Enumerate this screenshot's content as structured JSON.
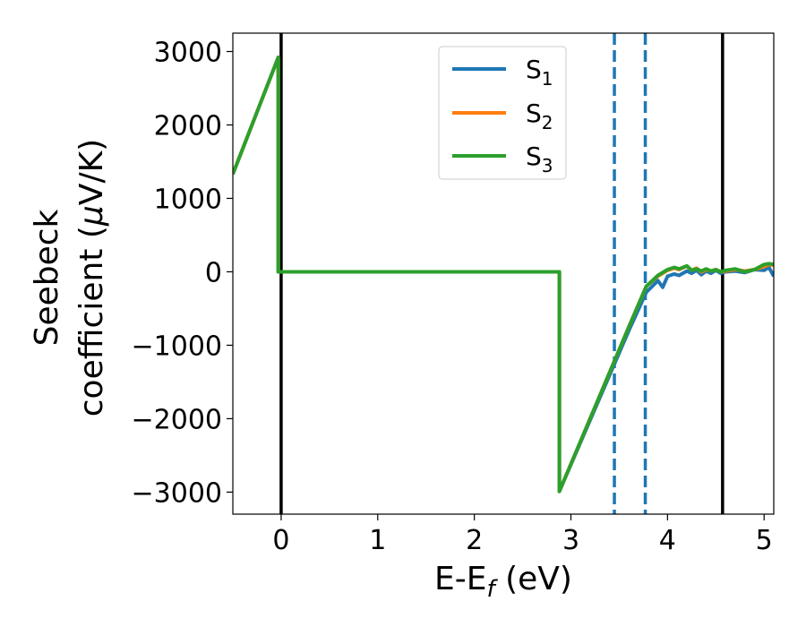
{
  "chart_data": {
    "type": "line",
    "xlabel": {
      "main": "E-E",
      "sub": "f",
      "unit": " (eV)"
    },
    "ylabel": {
      "line1": "Seebeck",
      "line2": "coefficient  (",
      "mu": "μ",
      "unit": "V/K)"
    },
    "xlim": [
      -0.5,
      5.1
    ],
    "ylim": [
      -3300,
      3250
    ],
    "x_ticks": [
      0,
      1,
      2,
      3,
      4,
      5
    ],
    "y_ticks": [
      -3000,
      -2000,
      -1000,
      0,
      1000,
      2000,
      3000
    ],
    "x_tick_labels": [
      "0",
      "1",
      "2",
      "3",
      "4",
      "5"
    ],
    "y_tick_labels": [
      "−3000",
      "−2000",
      "−1000",
      "0",
      "1000",
      "2000",
      "3000"
    ],
    "grid": false,
    "legend_position": "top-center",
    "vertical_lines": [
      {
        "x": 0.0,
        "style": "solid",
        "color": "#000000"
      },
      {
        "x": 4.57,
        "style": "solid",
        "color": "#000000"
      },
      {
        "x": 3.45,
        "style": "dashed",
        "color": "#1f77b4"
      },
      {
        "x": 3.77,
        "style": "dashed",
        "color": "#1f77b4"
      }
    ],
    "series": [
      {
        "name": {
          "base": "S",
          "sub": "1"
        },
        "color": "#1f77b4",
        "points": [
          [
            -0.5,
            1330
          ],
          [
            -0.03,
            2920
          ],
          [
            -0.03,
            0
          ],
          [
            2.88,
            0
          ],
          [
            2.88,
            -2990
          ],
          [
            3.6,
            -800
          ],
          [
            3.78,
            -280
          ],
          [
            3.9,
            -120
          ],
          [
            3.95,
            -210
          ],
          [
            4.0,
            -60
          ],
          [
            4.07,
            -30
          ],
          [
            4.12,
            -50
          ],
          [
            4.2,
            10
          ],
          [
            4.25,
            -20
          ],
          [
            4.3,
            20
          ],
          [
            4.35,
            -40
          ],
          [
            4.4,
            10
          ],
          [
            4.45,
            -20
          ],
          [
            4.5,
            20
          ],
          [
            4.55,
            -20
          ],
          [
            4.6,
            0
          ],
          [
            4.7,
            10
          ],
          [
            4.8,
            -10
          ],
          [
            4.9,
            30
          ],
          [
            5.0,
            20
          ],
          [
            5.05,
            60
          ],
          [
            5.1,
            -60
          ]
        ]
      },
      {
        "name": {
          "base": "S",
          "sub": "2"
        },
        "color": "#ff7f0e",
        "points": [
          [
            -0.5,
            1330
          ],
          [
            -0.03,
            2920
          ],
          [
            -0.03,
            0
          ],
          [
            2.88,
            0
          ],
          [
            2.88,
            -2990
          ],
          [
            3.6,
            -750
          ],
          [
            3.78,
            -200
          ],
          [
            3.9,
            -60
          ],
          [
            4.0,
            20
          ],
          [
            4.07,
            50
          ],
          [
            4.12,
            30
          ],
          [
            4.2,
            80
          ],
          [
            4.25,
            20
          ],
          [
            4.3,
            50
          ],
          [
            4.35,
            0
          ],
          [
            4.4,
            30
          ],
          [
            4.45,
            10
          ],
          [
            4.5,
            30
          ],
          [
            4.55,
            0
          ],
          [
            4.6,
            10
          ],
          [
            4.7,
            30
          ],
          [
            4.8,
            10
          ],
          [
            4.9,
            30
          ],
          [
            5.0,
            70
          ],
          [
            5.05,
            100
          ],
          [
            5.1,
            90
          ]
        ]
      },
      {
        "name": {
          "base": "S",
          "sub": "3"
        },
        "color": "#2ca02c",
        "points": [
          [
            -0.5,
            1330
          ],
          [
            -0.03,
            2920
          ],
          [
            -0.03,
            0
          ],
          [
            2.88,
            0
          ],
          [
            2.88,
            -2990
          ],
          [
            3.6,
            -750
          ],
          [
            3.78,
            -200
          ],
          [
            3.9,
            -50
          ],
          [
            4.0,
            30
          ],
          [
            4.07,
            60
          ],
          [
            4.12,
            40
          ],
          [
            4.2,
            80
          ],
          [
            4.25,
            20
          ],
          [
            4.3,
            40
          ],
          [
            4.35,
            10
          ],
          [
            4.4,
            40
          ],
          [
            4.45,
            10
          ],
          [
            4.5,
            30
          ],
          [
            4.55,
            0
          ],
          [
            4.6,
            20
          ],
          [
            4.7,
            40
          ],
          [
            4.8,
            0
          ],
          [
            4.9,
            30
          ],
          [
            5.0,
            100
          ],
          [
            5.05,
            110
          ],
          [
            5.1,
            100
          ]
        ]
      }
    ]
  }
}
